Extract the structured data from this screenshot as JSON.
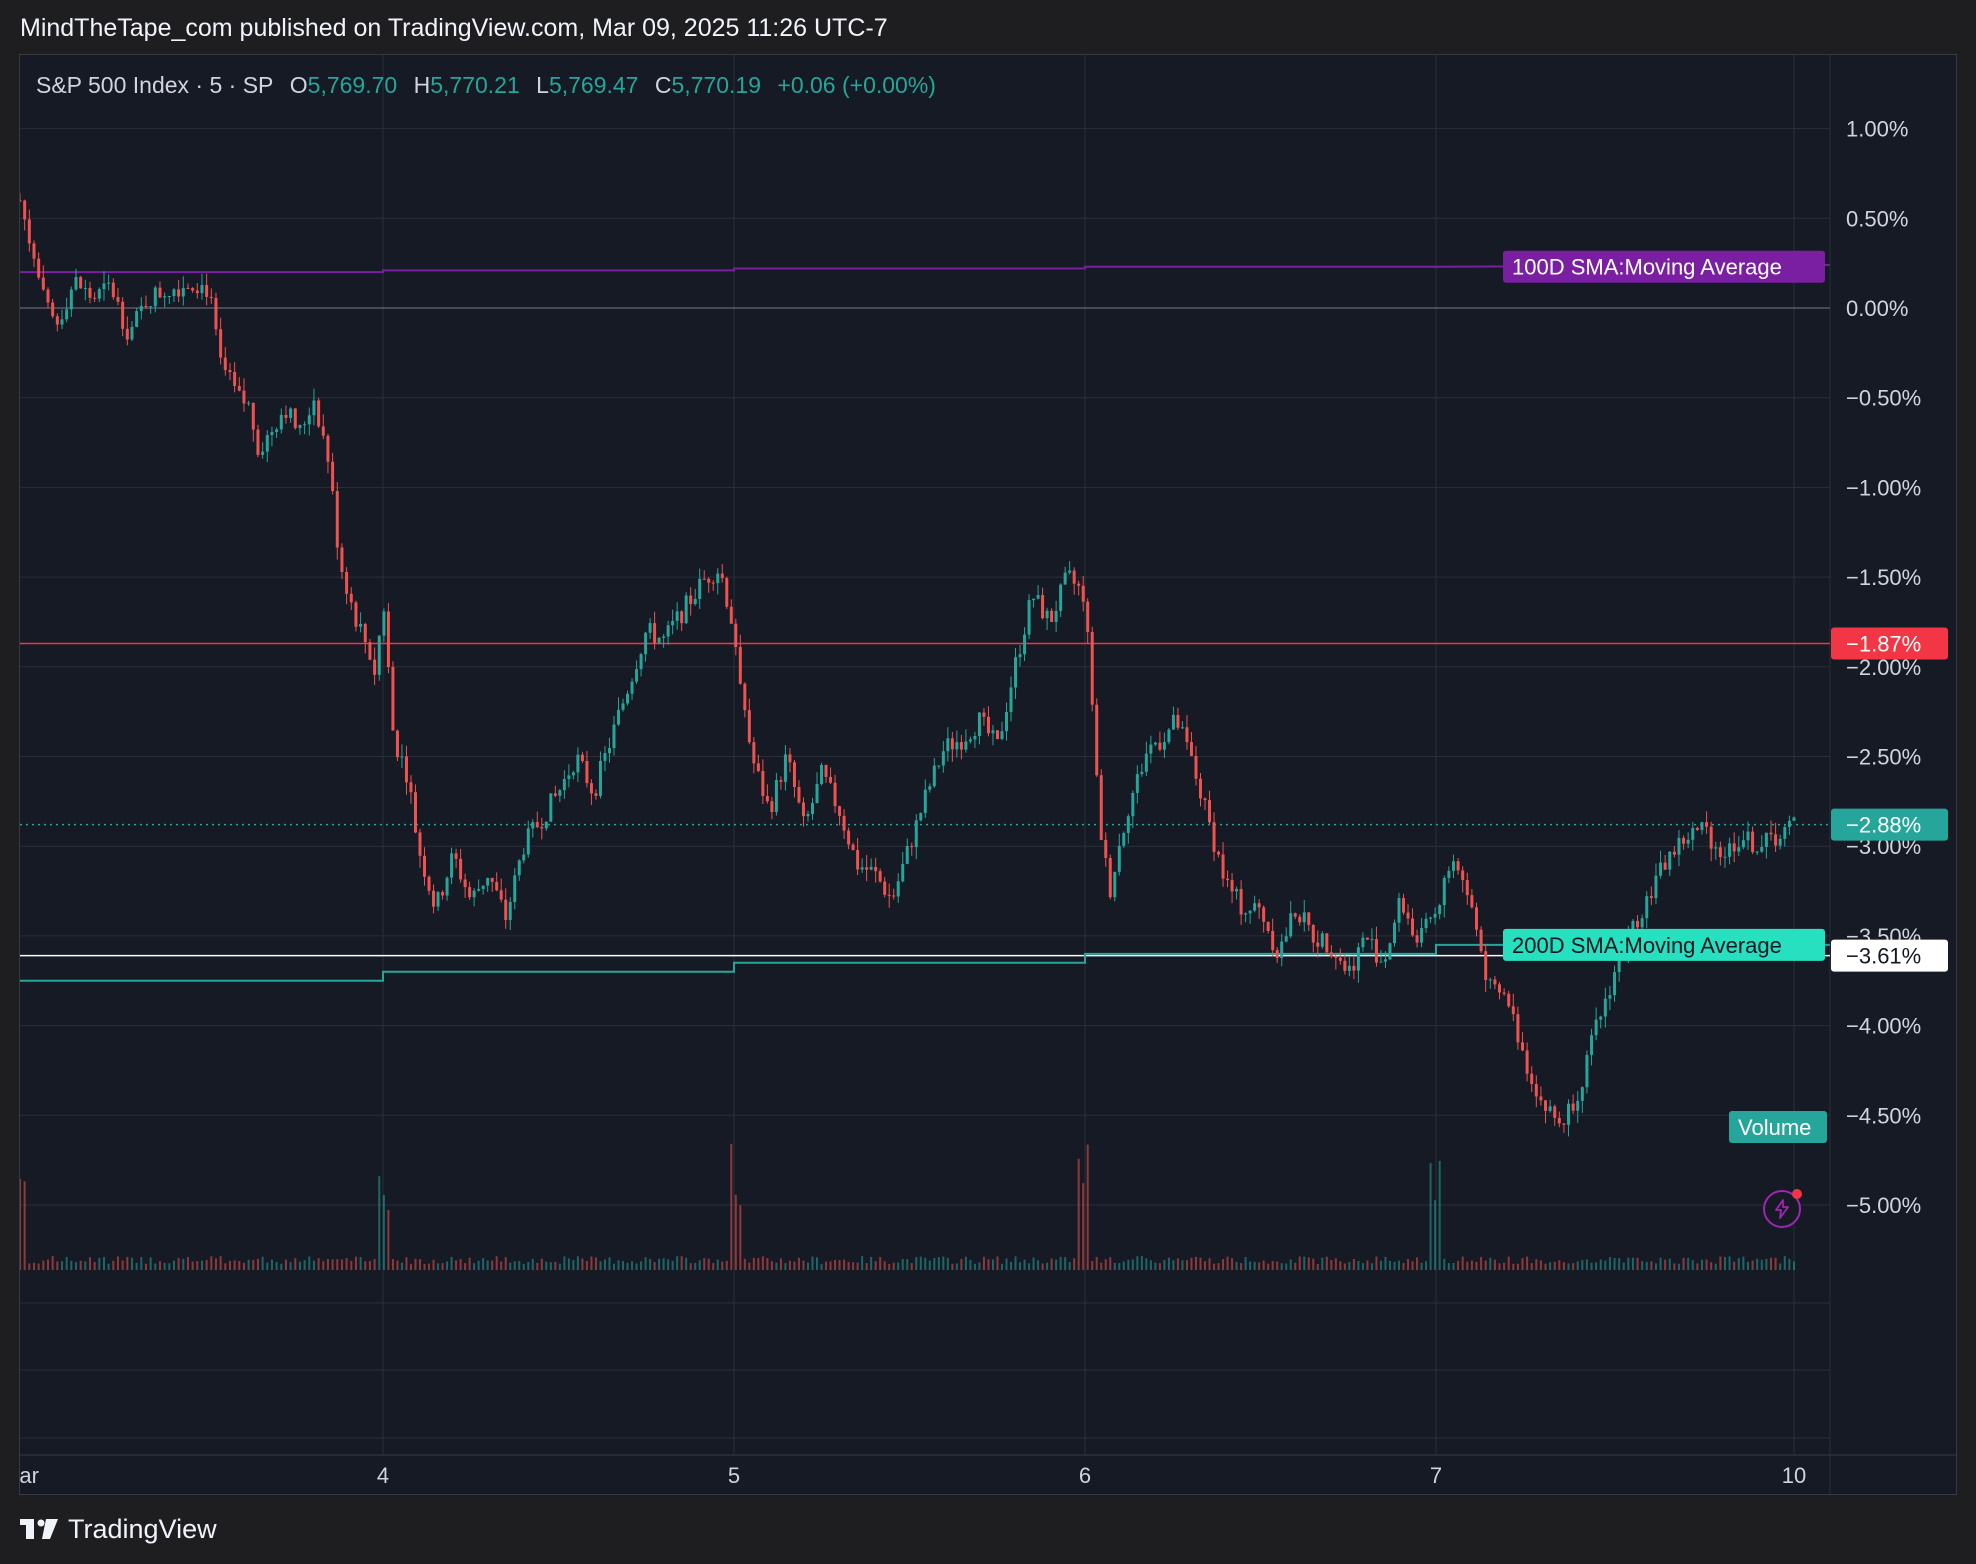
{
  "header": {
    "published_text": "MindTheTape_com published on TradingView.com, Mar 09, 2025 11:26 UTC-7"
  },
  "legend": {
    "symbol": "S&P 500 Index · 5 · SP",
    "o_label": "O",
    "o_value": "5,769.70",
    "h_label": "H",
    "h_value": "5,770.21",
    "l_label": "L",
    "l_value": "5,769.47",
    "c_label": "C",
    "c_value": "5,770.19",
    "change": "+0.06 (+0.00%)"
  },
  "footer": {
    "brand": "TradingView"
  },
  "colors": {
    "up": "#26a69a",
    "down": "#ef5350",
    "sma100": "#7b1fa2",
    "sma200": "#26a69a",
    "red_line": "#f23645",
    "white_line": "#ffffff",
    "grid": "#2a2e39"
  },
  "chart_data": {
    "type": "candlestick",
    "title": "S&P 500 Index · 5 · SP",
    "y_unit": "%",
    "ylim": [
      -5.3,
      1.3
    ],
    "y_ticks": [
      "1.00%",
      "0.50%",
      "0.00%",
      "−0.50%",
      "−1.00%",
      "−1.50%",
      "−2.00%",
      "−2.50%",
      "−3.00%",
      "−3.50%",
      "−4.00%",
      "−4.50%",
      "−5.00%"
    ],
    "y_tick_values": [
      1.0,
      0.5,
      0.0,
      -0.5,
      -1.0,
      -1.5,
      -2.0,
      -2.5,
      -3.0,
      -3.5,
      -4.0,
      -4.5,
      -5.0
    ],
    "x_ticks": [
      "Mar",
      "4",
      "5",
      "6",
      "7",
      "10"
    ],
    "x_tick_values": [
      0,
      1,
      2,
      3,
      4,
      5
    ],
    "xlim": [
      0,
      5.5
    ],
    "price_path": [
      [
        0.0,
        0.6
      ],
      [
        0.03,
        0.35
      ],
      [
        0.07,
        0.0
      ],
      [
        0.1,
        -0.1
      ],
      [
        0.15,
        0.15
      ],
      [
        0.2,
        0.05
      ],
      [
        0.25,
        0.12
      ],
      [
        0.3,
        -0.15
      ],
      [
        0.35,
        0.05
      ],
      [
        0.4,
        0.1
      ],
      [
        0.48,
        0.15
      ],
      [
        0.52,
        0.1
      ],
      [
        0.55,
        -0.3
      ],
      [
        0.6,
        -0.5
      ],
      [
        0.63,
        -0.55
      ],
      [
        0.66,
        -0.8
      ],
      [
        0.7,
        -0.65
      ],
      [
        0.73,
        -0.55
      ],
      [
        0.77,
        -0.7
      ],
      [
        0.81,
        -0.5
      ],
      [
        0.85,
        -0.85
      ],
      [
        0.88,
        -1.4
      ],
      [
        0.92,
        -1.7
      ],
      [
        0.96,
        -1.9
      ],
      [
        0.98,
        -2.05
      ],
      [
        1.0,
        -1.6
      ],
      [
        1.03,
        -2.4
      ],
      [
        1.07,
        -2.6
      ],
      [
        1.1,
        -3.0
      ],
      [
        1.15,
        -3.35
      ],
      [
        1.2,
        -3.05
      ],
      [
        1.25,
        -3.3
      ],
      [
        1.3,
        -3.15
      ],
      [
        1.35,
        -3.4
      ],
      [
        1.4,
        -3.0
      ],
      [
        1.5,
        -2.7
      ],
      [
        1.55,
        -2.5
      ],
      [
        1.6,
        -2.7
      ],
      [
        1.65,
        -2.4
      ],
      [
        1.7,
        -2.1
      ],
      [
        1.75,
        -1.8
      ],
      [
        1.8,
        -1.85
      ],
      [
        1.85,
        -1.7
      ],
      [
        1.92,
        -1.5
      ],
      [
        1.96,
        -1.45
      ],
      [
        2.0,
        -1.8
      ],
      [
        2.05,
        -2.5
      ],
      [
        2.1,
        -2.8
      ],
      [
        2.15,
        -2.5
      ],
      [
        2.2,
        -2.9
      ],
      [
        2.25,
        -2.6
      ],
      [
        2.3,
        -2.8
      ],
      [
        2.35,
        -3.1
      ],
      [
        2.4,
        -3.15
      ],
      [
        2.45,
        -3.3
      ],
      [
        2.5,
        -3.0
      ],
      [
        2.55,
        -2.7
      ],
      [
        2.6,
        -2.45
      ],
      [
        2.65,
        -2.4
      ],
      [
        2.7,
        -2.3
      ],
      [
        2.75,
        -2.45
      ],
      [
        2.8,
        -2.0
      ],
      [
        2.85,
        -1.6
      ],
      [
        2.9,
        -1.75
      ],
      [
        2.95,
        -1.5
      ],
      [
        3.0,
        -1.6
      ],
      [
        3.04,
        -2.85
      ],
      [
        3.07,
        -3.25
      ],
      [
        3.12,
        -2.8
      ],
      [
        3.18,
        -2.45
      ],
      [
        3.22,
        -2.4
      ],
      [
        3.26,
        -2.3
      ],
      [
        3.3,
        -2.5
      ],
      [
        3.35,
        -2.85
      ],
      [
        3.4,
        -3.2
      ],
      [
        3.45,
        -3.35
      ],
      [
        3.5,
        -3.35
      ],
      [
        3.55,
        -3.6
      ],
      [
        3.6,
        -3.35
      ],
      [
        3.65,
        -3.5
      ],
      [
        3.7,
        -3.55
      ],
      [
        3.75,
        -3.7
      ],
      [
        3.8,
        -3.5
      ],
      [
        3.85,
        -3.65
      ],
      [
        3.9,
        -3.3
      ],
      [
        3.95,
        -3.55
      ],
      [
        4.0,
        -3.35
      ],
      [
        4.05,
        -3.05
      ],
      [
        4.1,
        -3.35
      ],
      [
        4.15,
        -3.8
      ],
      [
        4.2,
        -3.85
      ],
      [
        4.25,
        -4.2
      ],
      [
        4.3,
        -4.45
      ],
      [
        4.35,
        -4.55
      ],
      [
        4.4,
        -4.35
      ],
      [
        4.45,
        -4.0
      ],
      [
        4.5,
        -3.7
      ],
      [
        4.55,
        -3.45
      ],
      [
        4.6,
        -3.25
      ],
      [
        4.65,
        -3.05
      ],
      [
        4.7,
        -2.95
      ],
      [
        4.75,
        -2.9
      ],
      [
        4.8,
        -3.05
      ],
      [
        4.85,
        -2.95
      ],
      [
        4.9,
        -3.0
      ],
      [
        4.95,
        -2.95
      ],
      [
        5.0,
        -2.88
      ]
    ],
    "overlays": [
      {
        "name": "100D SMA:Moving Average",
        "color": "#7b1fa2",
        "type": "step",
        "points": [
          [
            0,
            0.2
          ],
          [
            1,
            0.2
          ],
          [
            1.0,
            0.21
          ],
          [
            2,
            0.21
          ],
          [
            2.0,
            0.22
          ],
          [
            3,
            0.22
          ],
          [
            3.0,
            0.23
          ],
          [
            4,
            0.23
          ],
          [
            4.0,
            0.23
          ],
          [
            5.1,
            0.24
          ]
        ]
      },
      {
        "name": "200D SMA:Moving Average",
        "color": "#26a69a",
        "type": "step",
        "points": [
          [
            0,
            -3.75
          ],
          [
            1,
            -3.75
          ],
          [
            1.0,
            -3.7
          ],
          [
            2,
            -3.7
          ],
          [
            2.0,
            -3.65
          ],
          [
            3,
            -3.65
          ],
          [
            3.0,
            -3.6
          ],
          [
            4,
            -3.6
          ],
          [
            4.0,
            -3.55
          ],
          [
            5.1,
            -3.55
          ]
        ]
      }
    ],
    "horizontal_lines": [
      {
        "label": "−1.87%",
        "value": -1.87,
        "color": "#f23645",
        "style": "solid"
      },
      {
        "label": "−2.88%",
        "value": -2.88,
        "color": "#26a69a",
        "style": "dotted"
      },
      {
        "label": "−3.61%",
        "value": -3.61,
        "color": "#ffffff",
        "style": "solid"
      },
      {
        "label": "0.00%",
        "value": 0.0,
        "color": "#787b86",
        "style": "solid"
      }
    ],
    "series_labels": [
      {
        "text": "100D SMA:Moving Average",
        "value": 0.23,
        "color": "#7b1fa2"
      },
      {
        "text": "200D SMA:Moving Average",
        "value": -3.55,
        "color": "#26e0c0"
      }
    ],
    "volume": {
      "label": "Volume",
      "spike_positions": [
        0.0,
        1.0,
        2.0,
        3.0,
        4.0
      ]
    },
    "grid": true
  }
}
